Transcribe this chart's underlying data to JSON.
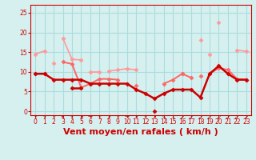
{
  "bg_color": "#d6f0f0",
  "grid_color": "#aadddd",
  "xlabel": "Vent moyen/en rafales ( km/h )",
  "xlabel_color": "#cc0000",
  "xlabel_fontsize": 8,
  "tick_color": "#cc0000",
  "x_ticks": [
    0,
    1,
    2,
    3,
    4,
    5,
    6,
    7,
    8,
    9,
    10,
    11,
    12,
    13,
    14,
    15,
    16,
    17,
    18,
    19,
    20,
    21,
    22,
    23
  ],
  "y_ticks": [
    0,
    5,
    10,
    15,
    20,
    25
  ],
  "ylim": [
    -1,
    27
  ],
  "xlim": [
    -0.5,
    23.5
  ],
  "series": [
    {
      "color": "#ff9999",
      "lw": 1.2,
      "marker": "D",
      "ms": 2.5,
      "data": [
        14.5,
        15.3,
        null,
        18.5,
        13.2,
        13.0,
        null,
        null,
        null,
        null,
        null,
        null,
        null,
        null,
        null,
        null,
        null,
        null,
        18.0,
        null,
        22.5,
        null,
        15.5,
        15.2
      ]
    },
    {
      "color": "#ff9999",
      "lw": 1.2,
      "marker": "D",
      "ms": 2.5,
      "data": [
        null,
        null,
        12.2,
        null,
        null,
        null,
        null,
        null,
        10.2,
        10.5,
        10.8,
        10.5,
        null,
        null,
        null,
        null,
        null,
        null,
        null,
        14.5,
        null,
        null,
        null,
        null
      ]
    },
    {
      "color": "#ff9999",
      "lw": 1.2,
      "marker": "D",
      "ms": 2.5,
      "data": [
        null,
        null,
        null,
        null,
        null,
        null,
        10.0,
        10.0,
        null,
        null,
        null,
        null,
        null,
        null,
        null,
        null,
        null,
        null,
        null,
        null,
        null,
        null,
        null,
        null
      ]
    },
    {
      "color": "#ff6666",
      "lw": 1.4,
      "marker": "D",
      "ms": 2.5,
      "data": [
        9.5,
        9.5,
        null,
        12.5,
        12.0,
        6.0,
        7.0,
        8.2,
        8.2,
        8.0,
        null,
        6.5,
        null,
        null,
        7.0,
        8.0,
        9.5,
        8.5,
        null,
        9.5,
        11.0,
        10.5,
        8.2,
        8.0
      ]
    },
    {
      "color": "#ff6666",
      "lw": 1.4,
      "marker": "D",
      "ms": 2.5,
      "data": [
        null,
        null,
        null,
        null,
        null,
        null,
        null,
        null,
        null,
        null,
        null,
        null,
        null,
        null,
        null,
        null,
        9.5,
        null,
        9.0,
        null,
        null,
        null,
        null,
        null
      ]
    },
    {
      "color": "#cc0000",
      "lw": 1.8,
      "marker": "D",
      "ms": 2.5,
      "data": [
        9.5,
        9.5,
        8.0,
        8.0,
        8.0,
        8.0,
        7.0,
        7.0,
        7.0,
        7.0,
        7.0,
        5.5,
        4.5,
        3.2,
        4.5,
        5.5,
        5.5,
        5.5,
        3.5,
        9.5,
        11.5,
        9.5,
        8.0,
        8.0
      ]
    },
    {
      "color": "#cc0000",
      "lw": 1.8,
      "marker": "D",
      "ms": 2.5,
      "data": [
        null,
        null,
        null,
        null,
        5.8,
        5.8,
        null,
        null,
        null,
        null,
        null,
        null,
        null,
        0.0,
        null,
        null,
        null,
        null,
        null,
        null,
        null,
        null,
        null,
        null
      ]
    }
  ]
}
